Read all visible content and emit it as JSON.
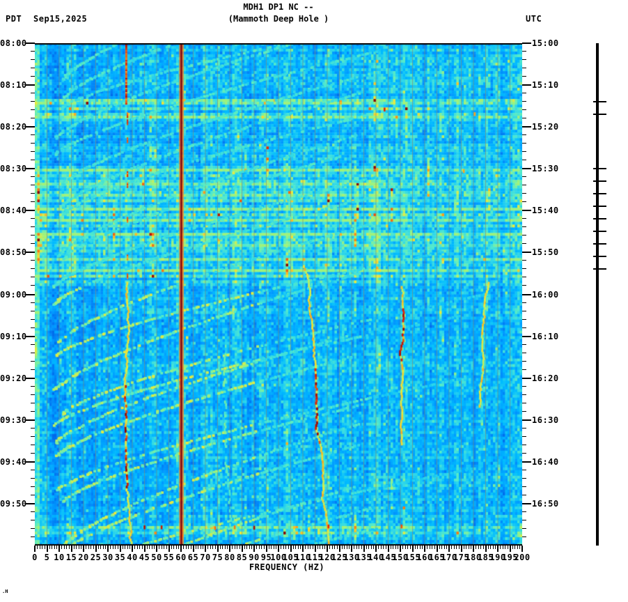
{
  "header": {
    "title": "MDH1 DP1 NC --",
    "subtitle": "(Mammoth Deep Hole )",
    "left_timezone": "PDT",
    "date": "Sep15,2025",
    "right_timezone": "UTC"
  },
  "footer": {
    "corner_mark": ".H"
  },
  "chart_data": {
    "type": "heatmap",
    "title": "MDH1 DP1 NC --",
    "subtitle": "(Mammoth Deep Hole )",
    "xlabel": "FREQUENCY (HZ)",
    "x_axis": {
      "min": 0,
      "max": 200,
      "major_step": 5,
      "minor_step": 1,
      "tick_labels": [
        "0",
        "5",
        "10",
        "15",
        "20",
        "25",
        "30",
        "35",
        "40",
        "45",
        "50",
        "55",
        "60",
        "65",
        "70",
        "75",
        "80",
        "85",
        "90",
        "95",
        "100",
        "105",
        "110",
        "115",
        "120",
        "125",
        "130",
        "135",
        "140",
        "145",
        "150",
        "155",
        "160",
        "165",
        "170",
        "175",
        "180",
        "185",
        "190",
        "195",
        "200"
      ]
    },
    "time_axis": {
      "duration_minutes": 120,
      "major_tick_minutes": 10,
      "minor_tick_minutes": 2,
      "left_labels": [
        "08:00",
        "08:10",
        "08:20",
        "08:30",
        "08:40",
        "08:50",
        "09:00",
        "09:10",
        "09:20",
        "09:30",
        "09:40",
        "09:50"
      ],
      "right_labels": [
        "15:00",
        "15:10",
        "15:20",
        "15:30",
        "15:40",
        "15:50",
        "16:00",
        "16:10",
        "16:20",
        "16:30",
        "16:40",
        "16:50"
      ]
    },
    "palette": {
      "stops": [
        [
          0,
          "#0040c8"
        ],
        [
          0.25,
          "#0070ee"
        ],
        [
          0.4,
          "#0095ff"
        ],
        [
          0.55,
          "#00bbff"
        ],
        [
          0.65,
          "#30d8e8"
        ],
        [
          0.74,
          "#58ecc4"
        ],
        [
          0.82,
          "#9ef27a"
        ],
        [
          0.88,
          "#eeea38"
        ],
        [
          0.93,
          "#ff9818"
        ],
        [
          0.97,
          "#e62000"
        ],
        [
          1,
          "#8c0000"
        ]
      ],
      "grid": "rgba(140,132,96,0.6)",
      "axis": "#000000",
      "background": "#ffffff",
      "event_bar": "#000000",
      "powerline_core": "#6e0000",
      "powerline_mid": "#d81800",
      "powerline_edge": "#ff9a20"
    },
    "features": {
      "gridline_step_hz": 5,
      "powerline_hz": 60,
      "calibration_line": {
        "freq_hz": 37.5,
        "solid_until_min": 14.5,
        "dash_minutes": [
          16.5,
          18.2,
          22.5,
          30.6,
          33.2,
          41.5,
          50.5,
          55
        ]
      },
      "event_marks_min": [
        14,
        17,
        30,
        33,
        36,
        39,
        42,
        45,
        48,
        51,
        54
      ],
      "strong_bands_min": [
        14,
        17,
        30,
        33,
        36,
        39,
        42,
        45,
        48,
        51,
        54,
        115.4
      ],
      "weak_bands_min": [
        13.2,
        15.5,
        31.5,
        34.5,
        37.5,
        40.5,
        43.5,
        46.5,
        49.5,
        52.5,
        55.5,
        56.5,
        116.6
      ],
      "dark_patches": [
        [
          1,
          13,
          2,
          38,
          0.07
        ],
        [
          19,
          29,
          2,
          34,
          0.05
        ],
        [
          58,
          118,
          3,
          30,
          0.06
        ],
        [
          97,
          118,
          30,
          56,
          0.035
        ],
        [
          0,
          57,
          133,
          200,
          -0.025
        ]
      ],
      "chirps": {
        "start_minutes": [
          -20,
          -14,
          -8,
          -3,
          2,
          7,
          12,
          17,
          22,
          27,
          32,
          37,
          43,
          49,
          55,
          60,
          65,
          70,
          75,
          80,
          86,
          91,
          96,
          101,
          106,
          111,
          116
        ],
        "duration_min": 26,
        "f_hi": 132,
        "f_lo": 9
      },
      "tremor_traces": [
        {
          "f": 37.8,
          "f_end": 39.5,
          "t0": 57,
          "t1": 120,
          "amp": 1.5,
          "hot": [
            80,
            106
          ]
        },
        {
          "f": 110.5,
          "f_end": 119,
          "t0": 53,
          "t1": 120,
          "amp": 1.8,
          "hot": [
            76,
            96
          ]
        },
        {
          "f": 150.5,
          "f_end": 149.5,
          "t0": 58,
          "t1": 96,
          "amp": 1.1,
          "hot": [
            62,
            76
          ]
        },
        {
          "f": 186.5,
          "f_end": 182.5,
          "t0": 57,
          "t1": 87,
          "amp": 1.3,
          "hot": []
        },
        {
          "f": 78.5,
          "f_end": 80,
          "t0": 72,
          "t1": 118,
          "amp": 1.2,
          "hot": [],
          "weak": true
        }
      ],
      "hot_dashes": [
        [
          143.5,
          15.8
        ],
        [
          140.5,
          30.2
        ],
        [
          176,
          30.5
        ],
        [
          180.5,
          16.9
        ],
        [
          150.5,
          115.4
        ],
        [
          120.5,
          115.4
        ],
        [
          45,
          115.6
        ],
        [
          52,
          115.6
        ],
        [
          82,
          115.6
        ],
        [
          90,
          115.7
        ],
        [
          74,
          115.8
        ]
      ]
    },
    "render": {
      "seed": 20250915,
      "rows": 180
    }
  }
}
